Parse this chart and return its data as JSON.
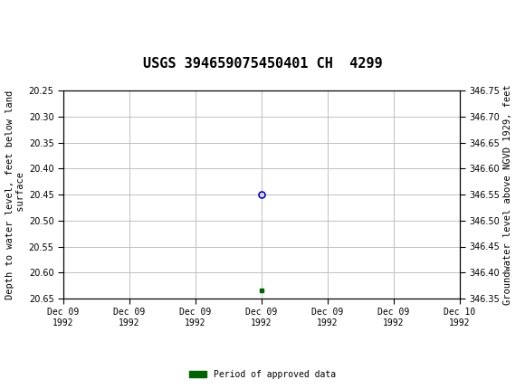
{
  "title": "USGS 394659075450401 CH  4299",
  "xlabel_ticks": [
    "Dec 09\n1992",
    "Dec 09\n1992",
    "Dec 09\n1992",
    "Dec 09\n1992",
    "Dec 09\n1992",
    "Dec 09\n1992",
    "Dec 10\n1992"
  ],
  "ylabel_left": "Depth to water level, feet below land\n surface",
  "ylabel_right": "Groundwater level above NGVD 1929, feet",
  "ylim_left": [
    20.65,
    20.25
  ],
  "ylim_right": [
    346.35,
    346.75
  ],
  "yticks_left": [
    20.25,
    20.3,
    20.35,
    20.4,
    20.45,
    20.5,
    20.55,
    20.6,
    20.65
  ],
  "yticks_right": [
    346.75,
    346.7,
    346.65,
    346.6,
    346.55,
    346.5,
    346.45,
    346.4,
    346.35
  ],
  "data_point_x": 3.0,
  "data_point_y": 20.45,
  "data_point_color": "#0000cc",
  "green_square_x": 3.0,
  "green_square_y": 20.635,
  "green_square_color": "#006400",
  "grid_color": "#c0c0c0",
  "background_color": "#ffffff",
  "header_bg_color": "#006633",
  "header_text_color": "#ffffff",
  "legend_label": "Period of approved data",
  "legend_color": "#006400",
  "xlim": [
    0,
    6
  ],
  "title_fontsize": 11,
  "axis_label_fontsize": 7.5,
  "tick_fontsize": 7,
  "font_family": "monospace"
}
